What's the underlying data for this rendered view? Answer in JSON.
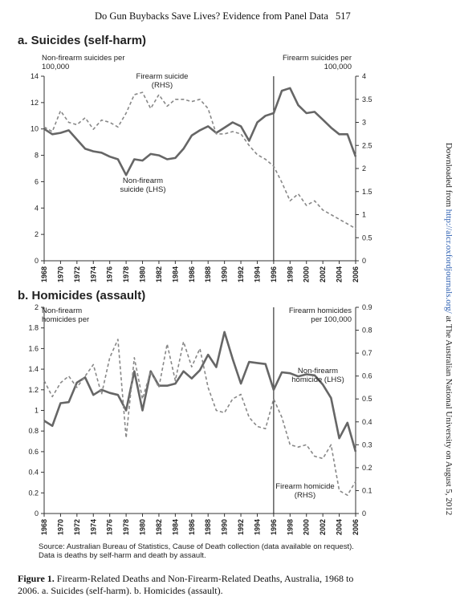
{
  "header": {
    "title": "Do Gun Buybacks Save Lives? Evidence from Panel Data",
    "page": "517"
  },
  "chart_data": [
    {
      "type": "line",
      "title": "a. Suicides (self-harm)",
      "y_label": "Non-firearm suicides per 100,000",
      "y2_label": "Firearm suicides per 100,000",
      "x": [
        1968,
        1969,
        1970,
        1971,
        1972,
        1973,
        1974,
        1975,
        1976,
        1977,
        1978,
        1979,
        1980,
        1981,
        1982,
        1983,
        1984,
        1985,
        1986,
        1987,
        1988,
        1989,
        1990,
        1991,
        1992,
        1993,
        1994,
        1995,
        1996,
        1997,
        1998,
        1999,
        2000,
        2001,
        2002,
        2003,
        2004,
        2005,
        2006
      ],
      "xlim": [
        1968,
        2006
      ],
      "xticks": [
        1968,
        1970,
        1972,
        1974,
        1976,
        1978,
        1980,
        1982,
        1984,
        1986,
        1988,
        1990,
        1992,
        1994,
        1996,
        1998,
        2000,
        2002,
        2004,
        2006
      ],
      "ylim": [
        0,
        14
      ],
      "yticks": [
        0,
        2,
        4,
        6,
        8,
        10,
        12,
        14
      ],
      "y2lim": [
        0,
        4
      ],
      "y2ticks": [
        0,
        0.5,
        1,
        1.5,
        2,
        2.5,
        3,
        3.5,
        4
      ],
      "vline": 1996,
      "series": [
        {
          "name": "Non-firearm suicide (LHS)",
          "color": "#666666",
          "linestyle": "solid",
          "values": [
            10.0,
            9.6,
            9.7,
            9.9,
            9.2,
            8.5,
            8.3,
            8.2,
            7.9,
            7.7,
            6.5,
            7.7,
            7.6,
            8.1,
            8.0,
            7.7,
            7.8,
            8.5,
            9.5,
            9.9,
            10.2,
            9.7,
            10.1,
            10.5,
            10.2,
            9.1,
            10.5,
            11.0,
            11.2,
            12.9,
            13.1,
            11.8,
            11.2,
            11.3,
            10.7,
            10.1,
            9.6,
            9.6,
            7.9
          ]
        },
        {
          "name": "Firearm suicide (RHS)",
          "color": "#888888",
          "linestyle": "dashed",
          "axis": "y2",
          "values": [
            2.9,
            2.8,
            3.25,
            3.0,
            2.95,
            3.1,
            2.85,
            3.05,
            3.0,
            2.9,
            3.2,
            3.6,
            3.65,
            3.3,
            3.6,
            3.35,
            3.5,
            3.5,
            3.45,
            3.5,
            3.3,
            2.75,
            2.75,
            2.8,
            2.75,
            2.5,
            2.3,
            2.2,
            2.05,
            1.7,
            1.3,
            1.45,
            1.2,
            1.3,
            1.1,
            1.0,
            0.9,
            0.8,
            0.7
          ]
        }
      ]
    },
    {
      "type": "line",
      "title": "b. Homicides (assault)",
      "y_label": "Non-firearm homicides per",
      "y2_label": "Firearm homicides per 100,000",
      "x": [
        1968,
        1969,
        1970,
        1971,
        1972,
        1973,
        1974,
        1975,
        1976,
        1977,
        1978,
        1979,
        1980,
        1981,
        1982,
        1983,
        1984,
        1985,
        1986,
        1987,
        1988,
        1989,
        1990,
        1991,
        1992,
        1993,
        1994,
        1995,
        1996,
        1997,
        1998,
        1999,
        2000,
        2001,
        2002,
        2003,
        2004,
        2005,
        2006
      ],
      "xlim": [
        1968,
        2006
      ],
      "xticks": [
        1968,
        1970,
        1972,
        1974,
        1976,
        1978,
        1980,
        1982,
        1984,
        1986,
        1988,
        1990,
        1992,
        1994,
        1996,
        1998,
        2000,
        2002,
        2004,
        2006
      ],
      "ylim": [
        0,
        2
      ],
      "yticks": [
        0,
        0.2,
        0.4,
        0.6,
        0.8,
        1,
        1.2,
        1.4,
        1.6,
        1.8,
        2
      ],
      "y2lim": [
        0,
        0.9
      ],
      "y2ticks": [
        0,
        0.1,
        0.2,
        0.3,
        0.4,
        0.5,
        0.6,
        0.7,
        0.8,
        0.9
      ],
      "vline": 1996,
      "series": [
        {
          "name": "Non-firearm homicide (LHS)",
          "color": "#666666",
          "linestyle": "solid",
          "values": [
            0.9,
            0.85,
            1.07,
            1.08,
            1.27,
            1.32,
            1.15,
            1.2,
            1.17,
            1.15,
            1.0,
            1.38,
            1.0,
            1.38,
            1.24,
            1.24,
            1.26,
            1.38,
            1.31,
            1.39,
            1.54,
            1.42,
            1.76,
            1.5,
            1.26,
            1.47,
            1.46,
            1.45,
            1.2,
            1.37,
            1.36,
            1.33,
            1.35,
            1.34,
            1.25,
            1.12,
            0.73,
            0.88,
            0.6
          ]
        },
        {
          "name": "Firearm homicide (RHS)",
          "color": "#888888",
          "linestyle": "dashed",
          "axis": "y2",
          "values": [
            0.58,
            0.51,
            0.57,
            0.6,
            0.55,
            0.6,
            0.65,
            0.52,
            0.68,
            0.76,
            0.33,
            0.68,
            0.5,
            0.62,
            0.55,
            0.74,
            0.58,
            0.75,
            0.64,
            0.72,
            0.55,
            0.45,
            0.44,
            0.5,
            0.52,
            0.42,
            0.38,
            0.37,
            0.5,
            0.42,
            0.3,
            0.29,
            0.3,
            0.25,
            0.24,
            0.3,
            0.1,
            0.08,
            0.14
          ]
        }
      ]
    }
  ],
  "source": "Source: Australian Bureau of Statistics, Cause of Death collection (data available on request). Data is deaths by self-harm and death by assault.",
  "caption": {
    "label": "Figure 1.",
    "text": "Firearm-Related Deaths and Non-Firearm-Related Deaths, Australia, 1968 to 2006. a. Suicides (self-harm). b. Homicides (assault)."
  },
  "side_note": {
    "before": "Downloaded from ",
    "link": "http://alcr.oxfordjournals.org/",
    "after": " at The Australian National University on August 5, 2012"
  }
}
